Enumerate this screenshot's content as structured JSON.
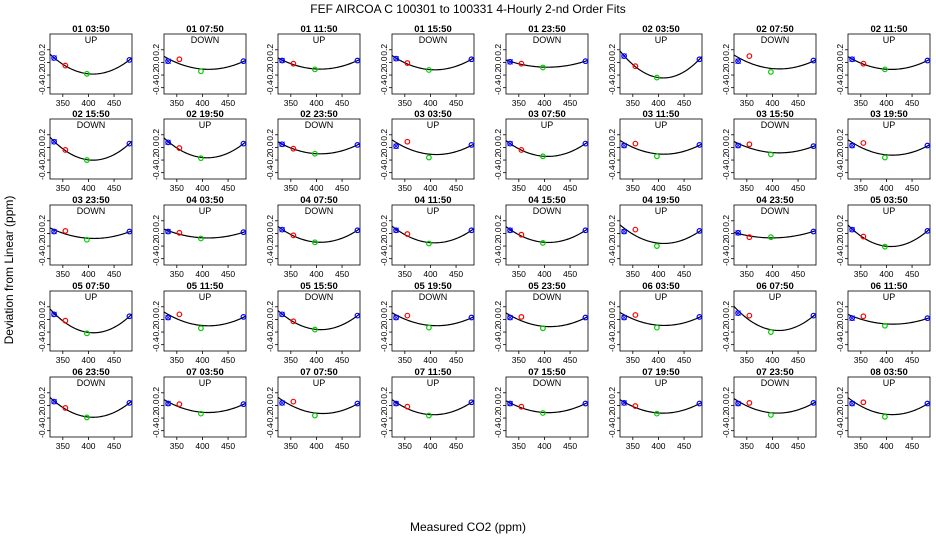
{
  "figure": {
    "title": "FEF   AIRCOA C   100301 to 100331   4-Hourly 2-nd Order Fits",
    "xlabel": "Measured CO2 (ppm)",
    "ylabel": "Deviation from Linear (ppm)"
  },
  "colors": {
    "background": "#ffffff",
    "axis": "#000000",
    "fit_curve": "#000000",
    "low_standard": "#0000ff",
    "mid_low_standard": "#ff0000",
    "mid_standard": "#00cc00",
    "high_standard": "#0000ff",
    "cross_marker": "#0000ff"
  },
  "chart_data": {
    "type": "scatter",
    "layout": {
      "rows": 5,
      "cols": 8
    },
    "x_ticks": [
      350,
      400,
      450
    ],
    "y_ticks": [
      -0.4,
      -0.2,
      0.0,
      0.2
    ],
    "y_tick_labels": [
      "-0.4",
      "-0.2",
      "0.0",
      "0.2"
    ],
    "xlim": [
      325,
      485
    ],
    "ylim": [
      -0.5,
      0.45
    ],
    "grid": false,
    "standard_co2": [
      333,
      355,
      397,
      480
    ],
    "panels": [
      {
        "title": "01 03:50",
        "dir": "UP",
        "points": [
          0.07,
          -0.05,
          -0.18,
          0.04
        ]
      },
      {
        "title": "01 07:50",
        "dir": "DOWN",
        "points": [
          0.02,
          0.05,
          -0.14,
          0.02
        ]
      },
      {
        "title": "01 11:50",
        "dir": "UP",
        "points": [
          0.03,
          -0.02,
          -0.11,
          0.03
        ]
      },
      {
        "title": "01 15:50",
        "dir": "DOWN",
        "points": [
          0.06,
          -0.01,
          -0.12,
          0.05
        ]
      },
      {
        "title": "01 23:50",
        "dir": "DOWN",
        "points": [
          0.01,
          -0.02,
          -0.08,
          0.02
        ]
      },
      {
        "title": "02 03:50",
        "dir": "UP",
        "points": [
          0.1,
          -0.06,
          -0.24,
          0.05
        ]
      },
      {
        "title": "02 07:50",
        "dir": "DOWN",
        "points": [
          0.02,
          0.1,
          -0.15,
          0.03
        ]
      },
      {
        "title": "02 11:50",
        "dir": "UP",
        "points": [
          0.05,
          -0.02,
          -0.11,
          0.03
        ]
      },
      {
        "title": "02 15:50",
        "dir": "DOWN",
        "points": [
          0.09,
          -0.04,
          -0.2,
          0.06
        ]
      },
      {
        "title": "02 19:50",
        "dir": "UP",
        "points": [
          0.08,
          -0.01,
          -0.17,
          0.06
        ]
      },
      {
        "title": "02 23:50",
        "dir": "DOWN",
        "points": [
          0.05,
          -0.02,
          -0.1,
          0.04
        ]
      },
      {
        "title": "03 03:50",
        "dir": "UP",
        "points": [
          0.02,
          0.09,
          -0.16,
          0.04
        ]
      },
      {
        "title": "03 07:50",
        "dir": "UP",
        "points": [
          0.06,
          -0.04,
          -0.14,
          0.06
        ]
      },
      {
        "title": "03 11:50",
        "dir": "UP",
        "points": [
          0.03,
          0.06,
          -0.14,
          0.04
        ]
      },
      {
        "title": "03 15:50",
        "dir": "DOWN",
        "points": [
          0.03,
          0.05,
          -0.11,
          0.02
        ]
      },
      {
        "title": "03 19:50",
        "dir": "UP",
        "points": [
          0.03,
          0.07,
          -0.16,
          0.03
        ]
      },
      {
        "title": "03 23:50",
        "dir": "DOWN",
        "points": [
          0.03,
          0.04,
          -0.1,
          0.03
        ]
      },
      {
        "title": "04 03:50",
        "dir": "UP",
        "points": [
          0.03,
          0.01,
          -0.08,
          0.02
        ]
      },
      {
        "title": "04 07:50",
        "dir": "DOWN",
        "points": [
          0.06,
          -0.03,
          -0.14,
          0.05
        ]
      },
      {
        "title": "04 11:50",
        "dir": "UP",
        "points": [
          0.05,
          -0.01,
          -0.16,
          0.05
        ]
      },
      {
        "title": "04 15:50",
        "dir": "DOWN",
        "points": [
          0.05,
          -0.02,
          -0.15,
          0.05
        ]
      },
      {
        "title": "04 19:50",
        "dir": "UP",
        "points": [
          0.03,
          0.06,
          -0.2,
          0.04
        ]
      },
      {
        "title": "04 23:50",
        "dir": "DOWN",
        "points": [
          0.01,
          -0.06,
          -0.06,
          0.03
        ]
      },
      {
        "title": "05 03:50",
        "dir": "UP",
        "points": [
          0.06,
          -0.05,
          -0.21,
          0.04
        ]
      },
      {
        "title": "05 07:50",
        "dir": "UP",
        "points": [
          0.08,
          -0.02,
          -0.22,
          0.05
        ]
      },
      {
        "title": "05 11:50",
        "dir": "UP",
        "points": [
          0.03,
          0.08,
          -0.14,
          0.04
        ]
      },
      {
        "title": "05 15:50",
        "dir": "DOWN",
        "points": [
          0.08,
          -0.03,
          -0.16,
          0.06
        ]
      },
      {
        "title": "05 19:50",
        "dir": "DOWN",
        "points": [
          0.03,
          0.06,
          -0.13,
          0.03
        ]
      },
      {
        "title": "05 23:50",
        "dir": "DOWN",
        "points": [
          0.03,
          0.04,
          -0.14,
          0.03
        ]
      },
      {
        "title": "06 03:50",
        "dir": "UP",
        "points": [
          0.03,
          0.07,
          -0.13,
          0.04
        ]
      },
      {
        "title": "06 07:50",
        "dir": "UP",
        "points": [
          0.1,
          0.06,
          -0.2,
          0.06
        ]
      },
      {
        "title": "06 11:50",
        "dir": "UP",
        "points": [
          0.02,
          0.05,
          -0.1,
          0.02
        ]
      },
      {
        "title": "06 23:50",
        "dir": "DOWN",
        "points": [
          0.06,
          -0.04,
          -0.19,
          0.04
        ]
      },
      {
        "title": "07 03:50",
        "dir": "UP",
        "points": [
          0.03,
          0.02,
          -0.13,
          0.02
        ]
      },
      {
        "title": "07 07:50",
        "dir": "UP",
        "points": [
          0.04,
          0.06,
          -0.16,
          0.03
        ]
      },
      {
        "title": "07 11:50",
        "dir": "UP",
        "points": [
          0.03,
          -0.02,
          -0.16,
          0.05
        ]
      },
      {
        "title": "07 15:50",
        "dir": "DOWN",
        "points": [
          0.03,
          -0.02,
          -0.12,
          0.03
        ]
      },
      {
        "title": "07 19:50",
        "dir": "UP",
        "points": [
          0.04,
          -0.01,
          -0.13,
          0.03
        ]
      },
      {
        "title": "07 23:50",
        "dir": "DOWN",
        "points": [
          0.03,
          0.04,
          -0.15,
          0.04
        ]
      },
      {
        "title": "08 03:50",
        "dir": "UP",
        "points": [
          0.03,
          0.05,
          -0.18,
          0.03
        ]
      }
    ]
  }
}
